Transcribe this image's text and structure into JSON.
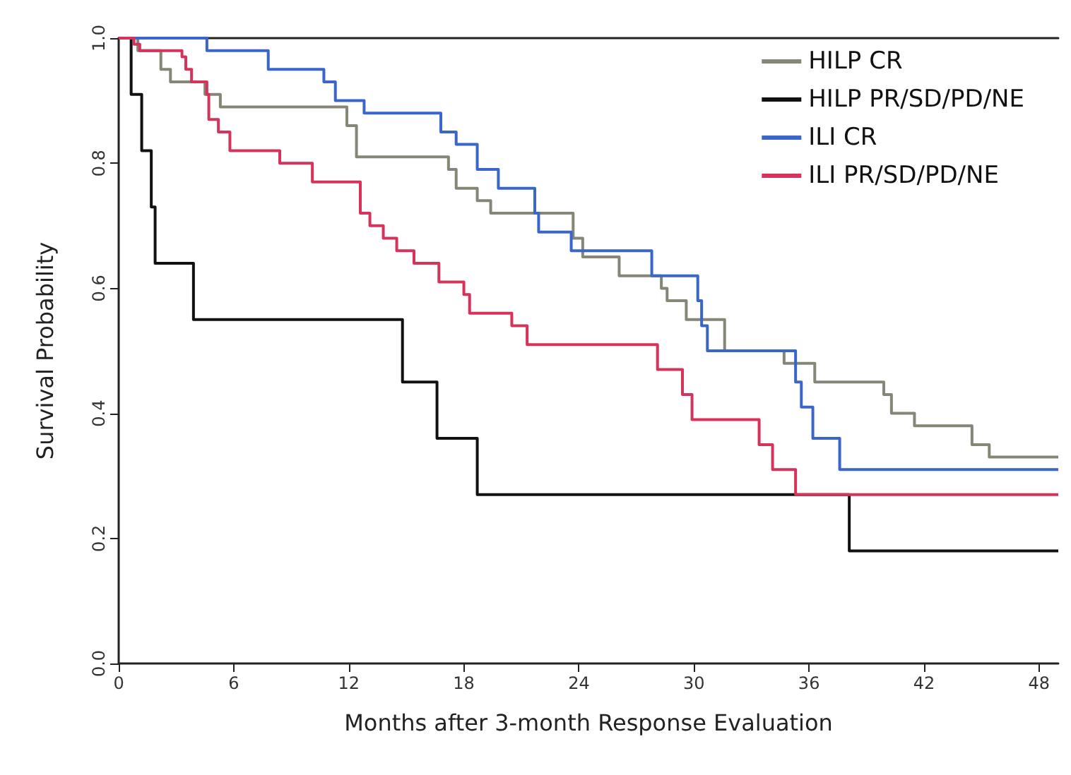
{
  "chart_data": {
    "type": "step",
    "xlabel": "Months after 3-month Response Evaluation",
    "ylabel": "Survival Probability",
    "xlim": [
      0,
      49
    ],
    "xticks": [
      0,
      6,
      12,
      18,
      24,
      30,
      36,
      42,
      48
    ],
    "ylim": [
      0,
      1
    ],
    "yticks": [
      {
        "value": 0,
        "label": "0.0"
      },
      0.2,
      0.4,
      0.6,
      0.8,
      {
        "value": 1,
        "label": "1.0"
      }
    ],
    "grid": false,
    "legend": "top right",
    "marker": "none",
    "line_style": "solid",
    "series": [
      {
        "name": "HILP CR",
        "color": "#858578",
        "x": [
          0,
          1.0,
          2.2,
          2.7,
          4.5,
          5.3,
          11.9,
          12.4,
          17.2,
          17.6,
          18.7,
          19.4,
          23.7,
          24.2,
          26.1,
          28.3,
          28.6,
          29.6,
          31.6,
          34.7,
          36.3,
          39.9,
          40.3,
          41.5,
          44.5,
          45.4,
          49
        ],
        "values": [
          1,
          0.98,
          0.95,
          0.93,
          0.91,
          0.89,
          0.86,
          0.81,
          0.79,
          0.76,
          0.74,
          0.72,
          0.68,
          0.65,
          0.62,
          0.6,
          0.58,
          0.55,
          0.5,
          0.48,
          0.45,
          0.43,
          0.4,
          0.38,
          0.35,
          0.33,
          0.33
        ]
      },
      {
        "name": "HILP PR/SD/PD/NE",
        "color": "#111111",
        "x": [
          0,
          0.65,
          1.2,
          1.7,
          1.9,
          3.9,
          14.8,
          16.6,
          18.7,
          38.1,
          49
        ],
        "values": [
          1,
          0.91,
          0.82,
          0.73,
          0.64,
          0.55,
          0.45,
          0.36,
          0.27,
          0.18,
          0.18
        ]
      },
      {
        "name": "ILI CR",
        "color": "#3a66cc",
        "x": [
          0,
          4.6,
          7.8,
          10.7,
          11.3,
          12.8,
          16.8,
          17.6,
          18.7,
          19.8,
          21.7,
          21.9,
          23.6,
          27.8,
          30.2,
          30.4,
          30.7,
          35.3,
          35.6,
          36.2,
          37.6,
          49
        ],
        "values": [
          1,
          0.98,
          0.95,
          0.93,
          0.9,
          0.88,
          0.85,
          0.83,
          0.79,
          0.76,
          0.72,
          0.69,
          0.66,
          0.62,
          0.58,
          0.54,
          0.5,
          0.45,
          0.41,
          0.36,
          0.31,
          0.31
        ]
      },
      {
        "name": "ILI PR/SD/PD/NE",
        "color": "#d6325a",
        "x": [
          0,
          0.8,
          1.1,
          3.3,
          3.5,
          3.8,
          4.6,
          4.7,
          5.2,
          5.8,
          8.4,
          10.1,
          12.6,
          13.1,
          13.8,
          14.5,
          15.4,
          16.7,
          18.0,
          18.3,
          20.5,
          21.3,
          28.1,
          29.4,
          29.9,
          33.4,
          34.1,
          35.3,
          49
        ],
        "values": [
          1,
          0.99,
          0.98,
          0.97,
          0.95,
          0.93,
          0.91,
          0.87,
          0.85,
          0.82,
          0.8,
          0.77,
          0.72,
          0.7,
          0.68,
          0.66,
          0.64,
          0.61,
          0.59,
          0.56,
          0.54,
          0.51,
          0.47,
          0.43,
          0.39,
          0.35,
          0.31,
          0.27,
          0.27
        ]
      }
    ]
  }
}
